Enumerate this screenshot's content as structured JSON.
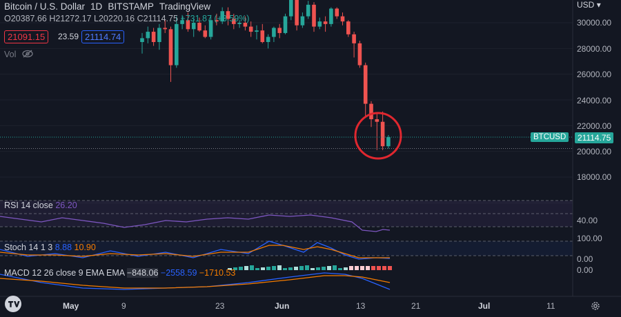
{
  "header": {
    "symbol": "Bitcoin / U.S. Dollar",
    "interval": "1D",
    "exchange": "BITSTAMP",
    "source": "TradingView",
    "o_label": "O",
    "o": "20387.66",
    "h_label": "H",
    "h": "21272.17",
    "l_label": "L",
    "l": "20220.16",
    "c_label": "C",
    "c": "21114.75",
    "change": "+731.87 (+3.59%)"
  },
  "quote": {
    "bid": "21091.15",
    "spread": "23.59",
    "ask": "21114.74"
  },
  "volume_label": "Vol",
  "currency": "USD",
  "price_axis": [
    "30000.00",
    "28000.00",
    "26000.00",
    "24000.00",
    "22000.00",
    "20000.00",
    "18000.00"
  ],
  "last_price_badge": {
    "label": "BTCUSD",
    "value": "21114.75"
  },
  "rsi": {
    "label": "RSI 14 close",
    "value": "26.20",
    "axis": [
      "40.00"
    ]
  },
  "stoch": {
    "label": "Stoch 14 1 3",
    "k": "8.88",
    "d": "10.90",
    "axis": [
      "100.00",
      "0.00"
    ]
  },
  "macd": {
    "label": "MACD 12 26 close 9 EMA EMA",
    "hist": "−848.06",
    "macd": "−2558.59",
    "signal": "−1710.53",
    "axis": [
      "0.00"
    ]
  },
  "time_axis": [
    "May",
    "9",
    "23",
    "Jun",
    "13",
    "21",
    "Jul",
    "11"
  ],
  "colors": {
    "up": "#26a69a",
    "down": "#ef5350",
    "highlight": "#e0272f",
    "rsi": "#7e57c2",
    "k": "#2962ff",
    "d": "#f57c00"
  },
  "icons": {
    "hide_volume": "eye-slash-icon",
    "settings": "gear-icon",
    "logo": "tradingview-logo-icon"
  },
  "chart_data": {
    "type": "candlestick",
    "ohlc": [
      [
        28500,
        29200,
        27600,
        28800
      ],
      [
        28800,
        29700,
        28400,
        29300
      ],
      [
        29300,
        29600,
        28200,
        28500
      ],
      [
        28500,
        29900,
        27900,
        29600
      ],
      [
        29600,
        30200,
        29200,
        29500
      ],
      [
        29500,
        29700,
        25400,
        26700
      ],
      [
        26700,
        30500,
        26500,
        29900
      ],
      [
        29900,
        30600,
        29500,
        30200
      ],
      [
        30200,
        30800,
        29300,
        29500
      ],
      [
        29500,
        30300,
        28900,
        30000
      ],
      [
        30000,
        30400,
        29300,
        29400
      ],
      [
        29400,
        29800,
        28800,
        28900
      ],
      [
        28900,
        30600,
        28700,
        30200
      ],
      [
        30200,
        30700,
        29800,
        30100
      ],
      [
        30100,
        31200,
        29900,
        30900
      ],
      [
        30900,
        31200,
        29800,
        30300
      ],
      [
        30300,
        30700,
        29500,
        29900
      ],
      [
        29900,
        30200,
        29600,
        30000
      ],
      [
        30000,
        30500,
        29400,
        29700
      ],
      [
        29700,
        30100,
        28900,
        29300
      ],
      [
        29300,
        29800,
        28700,
        29400
      ],
      [
        29400,
        29900,
        28400,
        28500
      ],
      [
        28500,
        29100,
        28000,
        28900
      ],
      [
        28900,
        29700,
        28500,
        29600
      ],
      [
        29600,
        29900,
        28800,
        29200
      ],
      [
        29200,
        30700,
        29100,
        30500
      ],
      [
        30500,
        31900,
        30200,
        31800
      ],
      [
        31800,
        31900,
        29400,
        29800
      ],
      [
        29800,
        30800,
        29600,
        30500
      ],
      [
        30500,
        31700,
        30300,
        31400
      ],
      [
        31400,
        31600,
        29300,
        29700
      ],
      [
        29700,
        30400,
        29500,
        30100
      ],
      [
        30100,
        30500,
        29300,
        29900
      ],
      [
        29900,
        31200,
        29700,
        31100
      ],
      [
        31100,
        31200,
        30300,
        30500
      ],
      [
        30500,
        30800,
        29800,
        30100
      ],
      [
        30100,
        30200,
        28900,
        29100
      ],
      [
        29100,
        29300,
        27300,
        28400
      ],
      [
        28400,
        28600,
        26500,
        26700
      ],
      [
        26700,
        26900,
        22600,
        23700
      ],
      [
        23700,
        23900,
        21900,
        22500
      ],
      [
        22500,
        22900,
        20100,
        22300
      ],
      [
        22300,
        23100,
        20100,
        20400
      ],
      [
        20400,
        21270,
        20220,
        21110
      ]
    ],
    "ylim": [
      16000,
      32000
    ],
    "rsi_axis_value": 40,
    "stoch_range": [
      0,
      100
    ]
  }
}
